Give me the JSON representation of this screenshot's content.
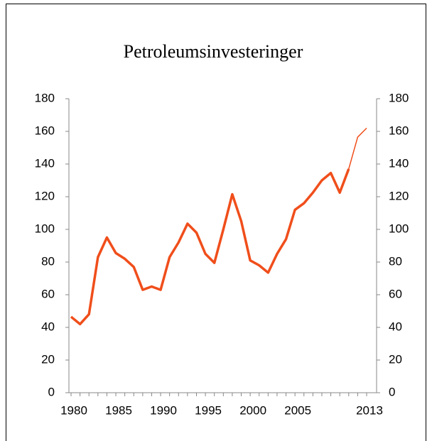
{
  "chart_data": {
    "type": "line",
    "title": "Petroleumsinvesteringer",
    "x": [
      1980,
      1981,
      1982,
      1983,
      1984,
      1985,
      1986,
      1987,
      1988,
      1989,
      1990,
      1991,
      1992,
      1993,
      1994,
      1995,
      1996,
      1997,
      1998,
      1999,
      2000,
      2001,
      2002,
      2003,
      2004,
      2005,
      2006,
      2007,
      2008,
      2009,
      2010,
      2011,
      2012,
      2013
    ],
    "series": [
      {
        "color": "#f04e1b",
        "width": 3.5,
        "values": [
          46.5,
          42,
          48,
          83,
          95,
          85.5,
          82,
          77,
          63,
          65,
          63,
          83,
          92,
          103.5,
          98,
          85,
          79.5,
          100,
          121.5,
          105,
          81,
          78,
          73.5,
          85,
          94,
          112,
          116,
          122.5,
          130,
          134.5,
          122.5,
          137,
          null,
          null
        ]
      },
      {
        "color": "#f04e1b",
        "width": 1.5,
        "values": [
          null,
          null,
          null,
          null,
          null,
          null,
          null,
          null,
          null,
          null,
          null,
          null,
          null,
          null,
          null,
          null,
          null,
          null,
          null,
          null,
          null,
          null,
          null,
          null,
          null,
          null,
          null,
          null,
          null,
          null,
          null,
          137,
          156.5,
          162
        ]
      }
    ],
    "xlim": [
      1980,
      2013
    ],
    "xticks": [
      1980,
      1985,
      1990,
      1995,
      2000,
      2005,
      2013
    ],
    "ylim": [
      0,
      180
    ],
    "yticks": [
      0,
      20,
      40,
      60,
      80,
      100,
      120,
      140,
      160,
      180
    ],
    "y2lim": [
      0,
      180
    ],
    "y2ticks": [
      0,
      20,
      40,
      60,
      80,
      100,
      120,
      140,
      160,
      180
    ],
    "grid": false
  }
}
